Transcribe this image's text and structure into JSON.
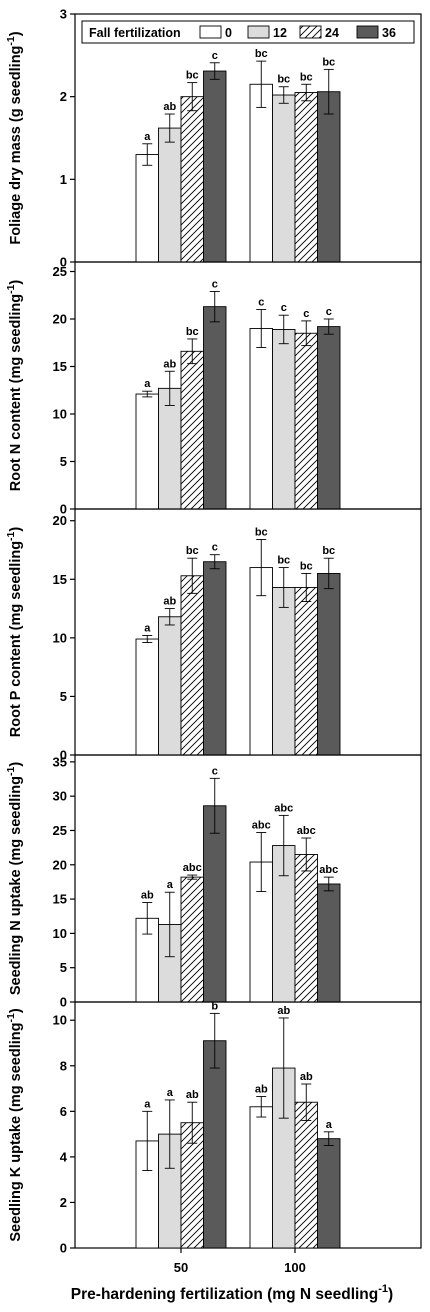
{
  "colors": {
    "treatment_0": "#ffffff",
    "treatment_12": "#dcdcdc",
    "treatment_24": "hatch",
    "treatment_36": "#5a5a5a",
    "axis": "#000000"
  },
  "legend": {
    "title": "Fall fertilization",
    "entries": [
      "0",
      "12",
      "24",
      "36"
    ],
    "placement": "top"
  },
  "xaxis": {
    "label_main": "Pre-hardening fertilization (mg N seedling",
    "label_sup": "-1",
    "label_close": ")",
    "categories": [
      "50",
      "100"
    ]
  },
  "chart_data": [
    {
      "type": "bar",
      "ylabel_main": "Foliage dry mass (g seedling",
      "ylabel_sup": "-1",
      "ylabel_close": ")",
      "ylim": [
        0,
        3
      ],
      "yticks": [
        0,
        1,
        2,
        3
      ],
      "categories": [
        "50",
        "100"
      ],
      "series": [
        {
          "name": "0",
          "values": [
            1.3,
            2.15
          ],
          "errors": [
            0.13,
            0.28
          ],
          "labels": [
            "a",
            "bc"
          ]
        },
        {
          "name": "12",
          "values": [
            1.62,
            2.02
          ],
          "errors": [
            0.17,
            0.1
          ],
          "labels": [
            "ab",
            "bc"
          ]
        },
        {
          "name": "24",
          "values": [
            2.0,
            2.05
          ],
          "errors": [
            0.17,
            0.1
          ],
          "labels": [
            "bc",
            "bc"
          ]
        },
        {
          "name": "36",
          "values": [
            2.31,
            2.06
          ],
          "errors": [
            0.1,
            0.27
          ],
          "labels": [
            "c",
            "bc"
          ]
        }
      ]
    },
    {
      "type": "bar",
      "ylabel_main": "Root N content (mg seedling",
      "ylabel_sup": "-1",
      "ylabel_close": ")",
      "ylim": [
        0,
        26
      ],
      "yticks": [
        0,
        5,
        10,
        15,
        20,
        25
      ],
      "categories": [
        "50",
        "100"
      ],
      "series": [
        {
          "name": "0",
          "values": [
            12.1,
            19.0
          ],
          "errors": [
            0.3,
            2.0
          ],
          "labels": [
            "a",
            "c"
          ]
        },
        {
          "name": "12",
          "values": [
            12.7,
            18.9
          ],
          "errors": [
            1.8,
            1.5
          ],
          "labels": [
            "ab",
            "c"
          ]
        },
        {
          "name": "24",
          "values": [
            16.6,
            18.5
          ],
          "errors": [
            1.3,
            1.3
          ],
          "labels": [
            "bc",
            "c"
          ]
        },
        {
          "name": "36",
          "values": [
            21.3,
            19.2
          ],
          "errors": [
            1.6,
            0.8
          ],
          "labels": [
            "c",
            "c"
          ]
        }
      ]
    },
    {
      "type": "bar",
      "ylabel_main": "Root P content (mg seedling",
      "ylabel_sup": "-1",
      "ylabel_close": ")",
      "ylim": [
        0,
        21
      ],
      "yticks": [
        0,
        5,
        10,
        15,
        20
      ],
      "categories": [
        "50",
        "100"
      ],
      "series": [
        {
          "name": "0",
          "values": [
            9.9,
            16.0
          ],
          "errors": [
            0.3,
            2.4
          ],
          "labels": [
            "a",
            "bc"
          ]
        },
        {
          "name": "12",
          "values": [
            11.8,
            14.3
          ],
          "errors": [
            0.7,
            1.7
          ],
          "labels": [
            "ab",
            "bc"
          ]
        },
        {
          "name": "24",
          "values": [
            15.3,
            14.3
          ],
          "errors": [
            1.5,
            1.2
          ],
          "labels": [
            "bc",
            "bc"
          ]
        },
        {
          "name": "36",
          "values": [
            16.5,
            15.5
          ],
          "errors": [
            0.6,
            1.3
          ],
          "labels": [
            "c",
            "bc"
          ]
        }
      ]
    },
    {
      "type": "bar",
      "ylabel_main": "Seedling N uptake (mg seedling",
      "ylabel_sup": "-1",
      "ylabel_close": ")",
      "ylim": [
        0,
        36
      ],
      "yticks": [
        0,
        5,
        10,
        15,
        20,
        25,
        30,
        35
      ],
      "categories": [
        "50",
        "100"
      ],
      "series": [
        {
          "name": "0",
          "values": [
            12.2,
            20.4
          ],
          "errors": [
            2.3,
            4.3
          ],
          "labels": [
            "ab",
            "abc"
          ]
        },
        {
          "name": "12",
          "values": [
            11.3,
            22.8
          ],
          "errors": [
            4.7,
            4.4
          ],
          "labels": [
            "a",
            "abc"
          ]
        },
        {
          "name": "24",
          "values": [
            18.2,
            21.5
          ],
          "errors": [
            0.3,
            2.4
          ],
          "labels": [
            "abc",
            "abc"
          ]
        },
        {
          "name": "36",
          "values": [
            28.6,
            17.2
          ],
          "errors": [
            4.0,
            1.0
          ],
          "labels": [
            "c",
            "abc"
          ]
        }
      ]
    },
    {
      "type": "bar",
      "ylabel_main": "Seedling K uptake (mg seedling",
      "ylabel_sup": "-1",
      "ylabel_close": ")",
      "ylim": [
        0,
        10.8
      ],
      "yticks": [
        0,
        2,
        4,
        6,
        8,
        10
      ],
      "categories": [
        "50",
        "100"
      ],
      "series": [
        {
          "name": "0",
          "values": [
            4.7,
            6.2
          ],
          "errors": [
            1.3,
            0.45
          ],
          "labels": [
            "a",
            "ab"
          ]
        },
        {
          "name": "12",
          "values": [
            5.0,
            7.9
          ],
          "errors": [
            1.5,
            2.2
          ],
          "labels": [
            "a",
            "ab"
          ]
        },
        {
          "name": "24",
          "values": [
            5.5,
            6.4
          ],
          "errors": [
            0.9,
            0.8
          ],
          "labels": [
            "ab",
            "ab"
          ]
        },
        {
          "name": "36",
          "values": [
            9.1,
            4.8
          ],
          "errors": [
            1.2,
            0.3
          ],
          "labels": [
            "b",
            "a"
          ]
        }
      ]
    }
  ]
}
